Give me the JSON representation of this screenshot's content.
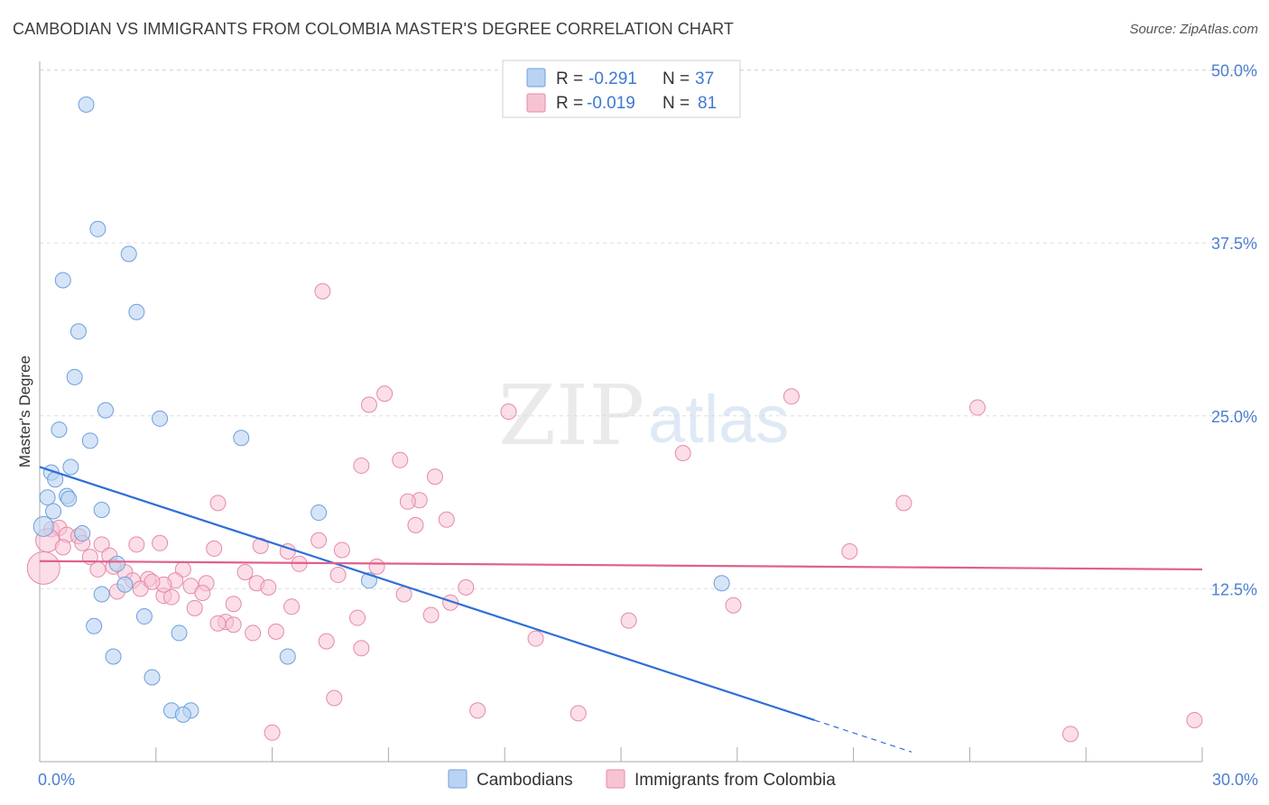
{
  "title": "CAMBODIAN VS IMMIGRANTS FROM COLOMBIA MASTER'S DEGREE CORRELATION CHART",
  "source": "Source: ZipAtlas.com",
  "watermark": {
    "zip": "ZIP",
    "atlas": "atlas"
  },
  "colors": {
    "blue_fill": "#b9d3f2",
    "blue_stroke": "#6f9fdc",
    "blue_line": "#2e6fd6",
    "pink_fill": "#f7c3d3",
    "pink_stroke": "#e58aa8",
    "pink_line": "#e0608a",
    "grid": "#dddddd",
    "tick_text": "#4a7fd0"
  },
  "legend": {
    "rows": [
      {
        "r_label": "R =",
        "r_value": "-0.291",
        "n_label": "N =",
        "n_value": "37"
      },
      {
        "r_label": "R =",
        "r_value": "-0.019",
        "n_label": "N =",
        "n_value": "81"
      }
    ]
  },
  "chart_data": {
    "type": "scatter",
    "title": "CAMBODIAN VS IMMIGRANTS FROM COLOMBIA MASTER'S DEGREE CORRELATION CHART",
    "xlabel": "",
    "ylabel": "Master's Degree",
    "xlim": [
      0,
      30
    ],
    "ylim": [
      0,
      52
    ],
    "x_tick_labels": [
      "0.0%",
      "30.0%"
    ],
    "y_ticks": [
      12.5,
      25.0,
      37.5,
      50.0
    ],
    "y_tick_labels": [
      "12.5%",
      "25.0%",
      "37.5%",
      "50.0%"
    ],
    "legend_position": "top-center",
    "series": [
      {
        "name": "Cambodians",
        "color": "#b9d3f2",
        "trend": {
          "x0": 0.0,
          "y0": 21.3,
          "x1": 20.0,
          "y1": 3.0,
          "dash_to_x": 22.5,
          "dash_to_y": 0.7
        },
        "points": [
          [
            1.2,
            47.5
          ],
          [
            1.5,
            38.5
          ],
          [
            2.3,
            36.7
          ],
          [
            0.6,
            34.8
          ],
          [
            2.5,
            32.5
          ],
          [
            1.0,
            31.1
          ],
          [
            0.9,
            27.8
          ],
          [
            1.7,
            25.4
          ],
          [
            3.1,
            24.8
          ],
          [
            0.5,
            24.0
          ],
          [
            1.3,
            23.2
          ],
          [
            5.2,
            23.4
          ],
          [
            0.8,
            21.3
          ],
          [
            0.3,
            20.9
          ],
          [
            0.4,
            20.4
          ],
          [
            0.2,
            19.1
          ],
          [
            0.7,
            19.2
          ],
          [
            0.75,
            19.0
          ],
          [
            1.6,
            18.2
          ],
          [
            0.35,
            18.1
          ],
          [
            7.2,
            18.0
          ],
          [
            0.1,
            17.0
          ],
          [
            1.1,
            16.5
          ],
          [
            2.0,
            14.3
          ],
          [
            2.2,
            12.8
          ],
          [
            8.5,
            13.1
          ],
          [
            17.6,
            12.9
          ],
          [
            1.6,
            12.1
          ],
          [
            2.7,
            10.5
          ],
          [
            1.4,
            9.8
          ],
          [
            3.6,
            9.3
          ],
          [
            1.9,
            7.6
          ],
          [
            6.4,
            7.6
          ],
          [
            2.9,
            6.1
          ],
          [
            3.4,
            3.7
          ],
          [
            3.9,
            3.7
          ],
          [
            3.7,
            3.4
          ]
        ]
      },
      {
        "name": "Immigrants from Colombia",
        "color": "#f7c3d3",
        "trend": {
          "x0": 0.0,
          "y0": 14.5,
          "x1": 30.0,
          "y1": 13.9
        },
        "points": [
          [
            7.3,
            34.0
          ],
          [
            8.9,
            26.6
          ],
          [
            19.4,
            26.4
          ],
          [
            8.5,
            25.8
          ],
          [
            12.1,
            25.3
          ],
          [
            24.2,
            25.6
          ],
          [
            16.6,
            22.3
          ],
          [
            9.3,
            21.8
          ],
          [
            8.3,
            21.4
          ],
          [
            10.2,
            20.6
          ],
          [
            4.6,
            18.7
          ],
          [
            22.3,
            18.7
          ],
          [
            9.8,
            18.9
          ],
          [
            9.5,
            18.8
          ],
          [
            10.5,
            17.5
          ],
          [
            9.7,
            17.1
          ],
          [
            0.3,
            16.8
          ],
          [
            0.5,
            16.9
          ],
          [
            0.7,
            16.4
          ],
          [
            1.0,
            16.3
          ],
          [
            0.2,
            16.0
          ],
          [
            1.1,
            15.8
          ],
          [
            1.6,
            15.7
          ],
          [
            2.5,
            15.7
          ],
          [
            3.1,
            15.8
          ],
          [
            7.2,
            16.0
          ],
          [
            5.7,
            15.6
          ],
          [
            4.5,
            15.4
          ],
          [
            6.4,
            15.2
          ],
          [
            7.8,
            15.3
          ],
          [
            20.9,
            15.2
          ],
          [
            1.3,
            14.8
          ],
          [
            1.8,
            14.9
          ],
          [
            6.7,
            14.3
          ],
          [
            8.7,
            14.1
          ],
          [
            0.1,
            14.0
          ],
          [
            1.5,
            13.9
          ],
          [
            2.2,
            13.7
          ],
          [
            3.7,
            13.9
          ],
          [
            5.3,
            13.7
          ],
          [
            7.7,
            13.5
          ],
          [
            2.4,
            13.1
          ],
          [
            2.8,
            13.2
          ],
          [
            3.5,
            13.1
          ],
          [
            4.3,
            12.9
          ],
          [
            5.6,
            12.9
          ],
          [
            3.9,
            12.7
          ],
          [
            5.9,
            12.6
          ],
          [
            11.0,
            12.6
          ],
          [
            2.6,
            12.5
          ],
          [
            2.0,
            12.3
          ],
          [
            3.2,
            12.0
          ],
          [
            3.4,
            11.9
          ],
          [
            9.4,
            12.1
          ],
          [
            10.6,
            11.5
          ],
          [
            5.0,
            11.4
          ],
          [
            6.5,
            11.2
          ],
          [
            17.9,
            11.3
          ],
          [
            4.0,
            11.1
          ],
          [
            8.2,
            10.4
          ],
          [
            10.1,
            10.6
          ],
          [
            4.8,
            10.1
          ],
          [
            4.6,
            10.0
          ],
          [
            5.0,
            9.9
          ],
          [
            15.2,
            10.2
          ],
          [
            5.5,
            9.3
          ],
          [
            6.1,
            9.4
          ],
          [
            7.4,
            8.7
          ],
          [
            8.3,
            8.2
          ],
          [
            12.8,
            8.9
          ],
          [
            7.6,
            4.6
          ],
          [
            11.3,
            3.7
          ],
          [
            13.9,
            3.5
          ],
          [
            6.0,
            2.1
          ],
          [
            26.6,
            2.0
          ],
          [
            29.8,
            3.0
          ],
          [
            3.2,
            12.8
          ],
          [
            2.9,
            13.0
          ],
          [
            1.9,
            14.1
          ],
          [
            0.6,
            15.5
          ],
          [
            4.2,
            12.2
          ]
        ]
      }
    ]
  }
}
